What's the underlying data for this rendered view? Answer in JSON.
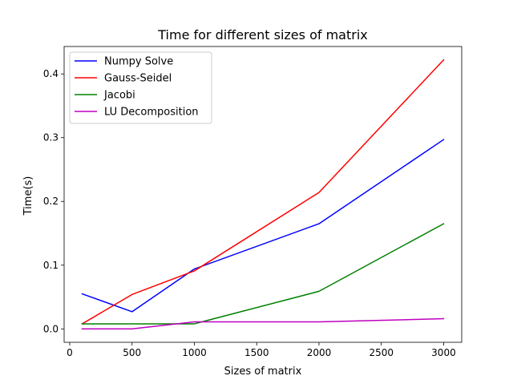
{
  "chart_data": {
    "type": "line",
    "title": "Time for different sizes of matrix",
    "xlabel": "Sizes of matrix",
    "ylabel": "Time(s)",
    "x": [
      100,
      500,
      1000,
      2000,
      3000
    ],
    "xlim": [
      -45,
      3145
    ],
    "ylim": [
      -0.021,
      0.443
    ],
    "xticks": [
      0,
      500,
      1000,
      1500,
      2000,
      2500,
      3000
    ],
    "yticks": [
      0.0,
      0.1,
      0.2,
      0.3,
      0.4
    ],
    "xtick_labels": [
      "0",
      "500",
      "1000",
      "1500",
      "2000",
      "2500",
      "3000"
    ],
    "ytick_labels": [
      "0.0",
      "0.1",
      "0.2",
      "0.3",
      "0.4"
    ],
    "grid": false,
    "legend_position": "upper-left",
    "series": [
      {
        "name": "Numpy Solve",
        "color": "#0000ff",
        "values": [
          0.055,
          0.027,
          0.094,
          0.165,
          0.297
        ]
      },
      {
        "name": "Gauss-Seidel",
        "color": "#ff0000",
        "values": [
          0.008,
          0.054,
          0.091,
          0.214,
          0.422
        ]
      },
      {
        "name": "Jacobi",
        "color": "#008000",
        "values": [
          0.008,
          0.008,
          0.008,
          0.059,
          0.165
        ]
      },
      {
        "name": "LU Decomposition",
        "color": "#bf00bf",
        "values": [
          0.0,
          0.0,
          0.011,
          0.011,
          0.016
        ]
      }
    ]
  }
}
